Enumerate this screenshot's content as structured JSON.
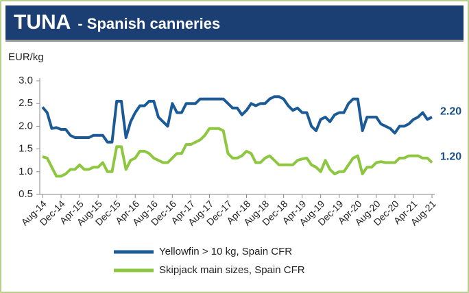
{
  "chart_data": {
    "type": "line",
    "title": "TUNA",
    "subtitle": "- Spanish canneries",
    "y_label": "EUR/kg",
    "categories": [
      "Aug-14",
      null,
      null,
      null,
      "Dec-14",
      null,
      null,
      null,
      "Apr-15",
      null,
      null,
      null,
      "Aug-15",
      null,
      null,
      null,
      "Dec-15",
      null,
      null,
      null,
      "Apr-16",
      null,
      null,
      null,
      "Aug-16",
      null,
      null,
      null,
      "Dec-16",
      null,
      null,
      null,
      "Apr-17",
      null,
      null,
      null,
      "Aug-17",
      null,
      null,
      null,
      "Dec-17",
      null,
      null,
      null,
      "Apr-18",
      null,
      null,
      null,
      "Aug-18",
      null,
      null,
      null,
      "Dec-18",
      null,
      null,
      null,
      "Apr-19",
      null,
      null,
      null,
      "Aug-19",
      null,
      null,
      null,
      "Dec-19",
      null,
      null,
      null,
      "Apr-20",
      null,
      null,
      null,
      "Aug-20",
      null,
      null,
      null,
      "Dec-20",
      null,
      null,
      null,
      "Apr-21",
      null,
      null,
      null,
      "Aug-21"
    ],
    "series": [
      {
        "name": "Yellowfin > 10 kg, Spain CFR",
        "color": "#1a5a96",
        "values": [
          2.42,
          2.3,
          1.95,
          1.97,
          1.93,
          1.93,
          1.8,
          1.75,
          1.75,
          1.75,
          1.75,
          1.8,
          1.8,
          1.8,
          1.65,
          1.65,
          2.55,
          2.55,
          1.75,
          2.1,
          2.3,
          2.45,
          2.45,
          2.55,
          2.55,
          2.2,
          2.1,
          2.0,
          2.5,
          2.3,
          2.3,
          2.5,
          2.5,
          2.5,
          2.6,
          2.6,
          2.6,
          2.6,
          2.6,
          2.6,
          2.5,
          2.4,
          2.4,
          2.25,
          2.35,
          2.5,
          2.45,
          2.5,
          2.5,
          2.6,
          2.65,
          2.65,
          2.6,
          2.45,
          2.35,
          2.4,
          2.3,
          2.3,
          2.0,
          1.9,
          2.15,
          2.2,
          2.1,
          2.25,
          2.3,
          2.3,
          2.5,
          2.6,
          2.6,
          1.9,
          2.2,
          2.2,
          2.2,
          2.05,
          2.0,
          1.95,
          1.85,
          2.0,
          2.0,
          2.05,
          2.15,
          2.2,
          2.3,
          2.15,
          2.2
        ],
        "value_labels": [
          null,
          null,
          null,
          null,
          null,
          null,
          null,
          null,
          null,
          null,
          null,
          null,
          null,
          null,
          null,
          null,
          null,
          null,
          null,
          null,
          null,
          null,
          null,
          null,
          null,
          null,
          null,
          null,
          null,
          null,
          null,
          null,
          null,
          null,
          null,
          null,
          null,
          null,
          null,
          null,
          null,
          null,
          null,
          null,
          null,
          null,
          null,
          null,
          null,
          null,
          null,
          null,
          null,
          null,
          null,
          null,
          null,
          null,
          null,
          null,
          null,
          null,
          null,
          null,
          null,
          null,
          null,
          null,
          null,
          null,
          null,
          null,
          null,
          null,
          null,
          null,
          null,
          null,
          null,
          null,
          null,
          null,
          null,
          null,
          "2.20"
        ]
      },
      {
        "name": "Skipjack main sizes, Spain CFR",
        "color": "#8dc63f",
        "values": [
          1.33,
          1.3,
          1.1,
          0.9,
          0.9,
          0.95,
          1.05,
          1.05,
          1.15,
          1.05,
          1.05,
          1.1,
          1.1,
          1.2,
          1.0,
          1.0,
          1.55,
          1.55,
          1.05,
          1.25,
          1.3,
          1.45,
          1.45,
          1.4,
          1.3,
          1.25,
          1.2,
          1.2,
          1.3,
          1.4,
          1.4,
          1.6,
          1.6,
          1.65,
          1.7,
          1.8,
          1.95,
          1.95,
          1.95,
          1.9,
          1.4,
          1.3,
          1.3,
          1.35,
          1.45,
          1.4,
          1.2,
          1.2,
          1.3,
          1.35,
          1.25,
          1.15,
          1.15,
          1.15,
          1.15,
          1.25,
          1.28,
          1.3,
          1.15,
          1.1,
          1.0,
          1.25,
          1.05,
          0.95,
          1.0,
          1.0,
          1.15,
          1.3,
          1.35,
          0.95,
          1.1,
          1.1,
          1.2,
          1.22,
          1.2,
          1.2,
          1.2,
          1.3,
          1.3,
          1.35,
          1.35,
          1.35,
          1.3,
          1.3,
          1.2
        ],
        "value_labels": [
          null,
          null,
          null,
          null,
          null,
          null,
          null,
          null,
          null,
          null,
          null,
          null,
          null,
          null,
          null,
          null,
          null,
          null,
          null,
          null,
          null,
          null,
          null,
          null,
          null,
          null,
          null,
          null,
          null,
          null,
          null,
          null,
          null,
          null,
          null,
          null,
          null,
          null,
          null,
          null,
          null,
          null,
          null,
          null,
          null,
          null,
          null,
          null,
          null,
          null,
          null,
          null,
          null,
          null,
          null,
          null,
          null,
          null,
          null,
          null,
          null,
          null,
          null,
          null,
          null,
          null,
          null,
          null,
          null,
          null,
          null,
          null,
          null,
          null,
          null,
          null,
          null,
          null,
          null,
          null,
          null,
          null,
          null,
          null,
          "1.20"
        ]
      }
    ],
    "ylim": [
      0.5,
      3.0
    ],
    "yticks": [
      {
        "value": 3.0,
        "label": "3.0"
      },
      {
        "value": 2.5,
        "label": "2.5"
      },
      {
        "value": 2.0,
        "label": "2.0"
      },
      {
        "value": 1.5,
        "label": "1.5"
      },
      {
        "value": 1.0,
        "label": "1.0"
      },
      {
        "value": 0.5,
        "label": "0.5"
      }
    ],
    "grid": false,
    "legend": "bottom"
  }
}
